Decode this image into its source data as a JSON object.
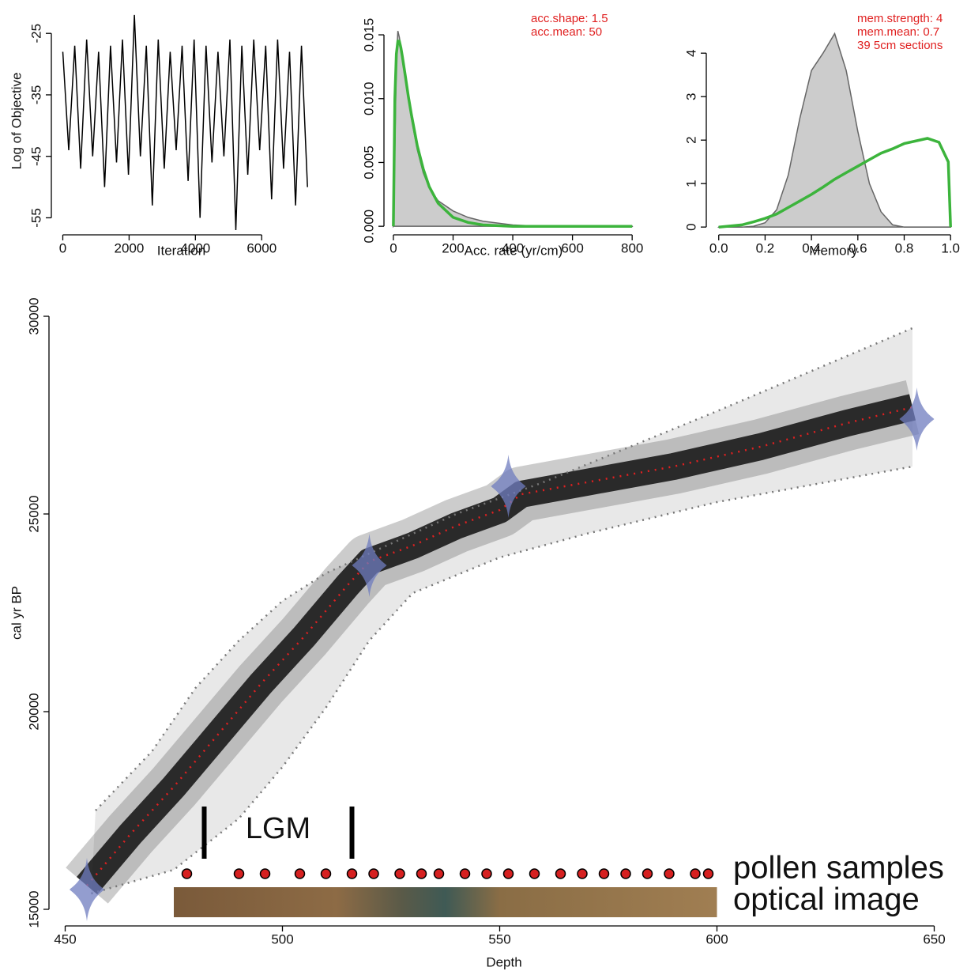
{
  "chart_data": [
    {
      "type": "line",
      "xlabel": "Iteration",
      "ylabel": "Log of Objective",
      "x": [
        0,
        180,
        360,
        540,
        720,
        900,
        1080,
        1260,
        1440,
        1620,
        1800,
        1980,
        2160,
        2340,
        2520,
        2700,
        2880,
        3060,
        3240,
        3420,
        3600,
        3780,
        3960,
        4140,
        4320,
        4500,
        4680,
        4860,
        5040,
        5220,
        5400,
        5580,
        5760,
        5940,
        6120,
        6300,
        6480,
        6660,
        6840,
        7020,
        7200,
        7380
      ],
      "series": [
        {
          "color": "#000000",
          "values": [
            -28,
            -44,
            -27,
            -47,
            -26,
            -45,
            -28,
            -50,
            -27,
            -46,
            -26,
            -48,
            -22,
            -45,
            -27,
            -53,
            -26,
            -47,
            -28,
            -44,
            -27,
            -49,
            -26,
            -55,
            -27,
            -46,
            -28,
            -45,
            -26,
            -57,
            -27,
            -48,
            -26,
            -44,
            -27,
            -52,
            -26,
            -47,
            -28,
            -53,
            -27,
            -50
          ]
        }
      ],
      "xlim": [
        -250,
        7400
      ],
      "ylim": [
        -57,
        -21.5
      ],
      "xticks": [
        0,
        2000,
        4000,
        6000
      ],
      "yticks": [
        -25,
        -35,
        -45,
        -55
      ]
    },
    {
      "type": "density",
      "xlabel": "Acc. rate (yr/cm)",
      "annotations": [
        "acc.shape:  1.5",
        "acc.mean:  50"
      ],
      "x": [
        0,
        5,
        10,
        15,
        20,
        25,
        30,
        40,
        50,
        60,
        80,
        100,
        120,
        150,
        200,
        250,
        300,
        400,
        500,
        600,
        800
      ],
      "series": [
        {
          "color": "#666666",
          "fill": "#cccccc",
          "values": [
            0,
            0.006,
            0.013,
            0.0153,
            0.0148,
            0.014,
            0.013,
            0.0115,
            0.01,
            0.0085,
            0.006,
            0.0042,
            0.003,
            0.002,
            0.0012,
            0.0007,
            0.0004,
            0.0001,
            0,
            0,
            0
          ]
        },
        {
          "color": "#3cb43c",
          "values": [
            0,
            0.01,
            0.0135,
            0.0145,
            0.0145,
            0.014,
            0.0133,
            0.0118,
            0.0102,
            0.0088,
            0.0063,
            0.0045,
            0.0031,
            0.0018,
            0.0007,
            0.0003,
            0.0001,
            0,
            0,
            0,
            0
          ]
        }
      ],
      "xlim": [
        -21,
        826
      ],
      "ylim": [
        -0.0003,
        0.0168
      ],
      "xticks": [
        0,
        200,
        400,
        600,
        800
      ],
      "yticks": [
        {
          "value": 0,
          "label": "0.000"
        },
        0.005,
        {
          "value": 0.01,
          "label": "0.010"
        },
        0.015
      ]
    },
    {
      "type": "density",
      "xlabel": "Memory",
      "annotations": [
        "mem.strength: 4",
        "mem.mean: 0.7",
        "39 5cm sections"
      ],
      "x": [
        0,
        0.1,
        0.15,
        0.2,
        0.25,
        0.3,
        0.35,
        0.4,
        0.45,
        0.5,
        0.55,
        0.6,
        0.65,
        0.7,
        0.75,
        0.8,
        0.9,
        0.95,
        0.99,
        1.0
      ],
      "series": [
        {
          "color": "#666666",
          "fill": "#cccccc",
          "values": [
            0,
            0,
            0.02,
            0.1,
            0.4,
            1.2,
            2.5,
            3.6,
            4.0,
            4.45,
            3.6,
            2.2,
            1.0,
            0.35,
            0.05,
            0,
            0,
            0,
            0,
            0
          ]
        },
        {
          "color": "#3cb43c",
          "values": [
            0,
            0.05,
            0.12,
            0.2,
            0.3,
            0.45,
            0.6,
            0.75,
            0.92,
            1.1,
            1.25,
            1.4,
            1.55,
            1.7,
            1.8,
            1.92,
            2.04,
            1.95,
            1.5,
            0
          ]
        }
      ],
      "xlim": [
        -0.04,
        1.03
      ],
      "ylim": [
        -0.07,
        4.95
      ],
      "xticks": [
        {
          "value": 0,
          "label": "0.0"
        },
        0.2,
        0.4,
        0.6,
        0.8,
        {
          "value": 1,
          "label": "1.0"
        }
      ],
      "yticks": [
        0,
        1,
        2,
        3,
        4
      ]
    },
    {
      "type": "agedepth",
      "xlabel": "Depth",
      "ylabel": "cal yr BP",
      "xlim": [
        447,
        655
      ],
      "ylim": [
        14700,
        30300
      ],
      "xticks": [
        450,
        500,
        550,
        600,
        650
      ],
      "yticks": [
        15000,
        20000,
        25000,
        30000
      ],
      "mean_age": {
        "color": "#e02020",
        "x": [
          455,
          465,
          475,
          485,
          495,
          505,
          515,
          520,
          530,
          540,
          550,
          555,
          570,
          590,
          610,
          630,
          645
        ],
        "values": [
          15600,
          16900,
          18100,
          19400,
          20700,
          21900,
          23200,
          23800,
          24200,
          24700,
          25100,
          25500,
          25800,
          26200,
          26700,
          27300,
          27700
        ]
      },
      "min_age": {
        "color": "#777777",
        "x": [
          456,
          475,
          490,
          500,
          510,
          520,
          530,
          550,
          570,
          600,
          645
        ],
        "values": [
          15400,
          16000,
          17300,
          18600,
          20100,
          21800,
          23000,
          23900,
          24500,
          25300,
          26200
        ]
      },
      "max_age": {
        "color": "#777777",
        "x": [
          457,
          470,
          480,
          490,
          500,
          510,
          520,
          540,
          560,
          600,
          645
        ],
        "values": [
          17500,
          19000,
          20600,
          21800,
          22800,
          23500,
          24000,
          25000,
          25800,
          27600,
          29700
        ]
      },
      "dates": {
        "color": "#6f7cbf",
        "depths": [
          455,
          520,
          552,
          646
        ],
        "ages": [
          15500,
          23700,
          25700,
          27400
        ]
      },
      "lgm": {
        "label": "LGM",
        "depths": [
          482,
          516
        ]
      },
      "pollen": {
        "label": "pollen samples",
        "color": "#d62020",
        "depths": [
          478,
          490,
          496,
          504,
          510,
          516,
          521,
          527,
          532,
          536,
          542,
          547,
          552,
          558,
          564,
          569,
          574,
          579,
          584,
          589,
          595,
          598
        ]
      },
      "optical_image": {
        "label": "optical image",
        "depths": [
          475,
          600
        ]
      }
    }
  ]
}
